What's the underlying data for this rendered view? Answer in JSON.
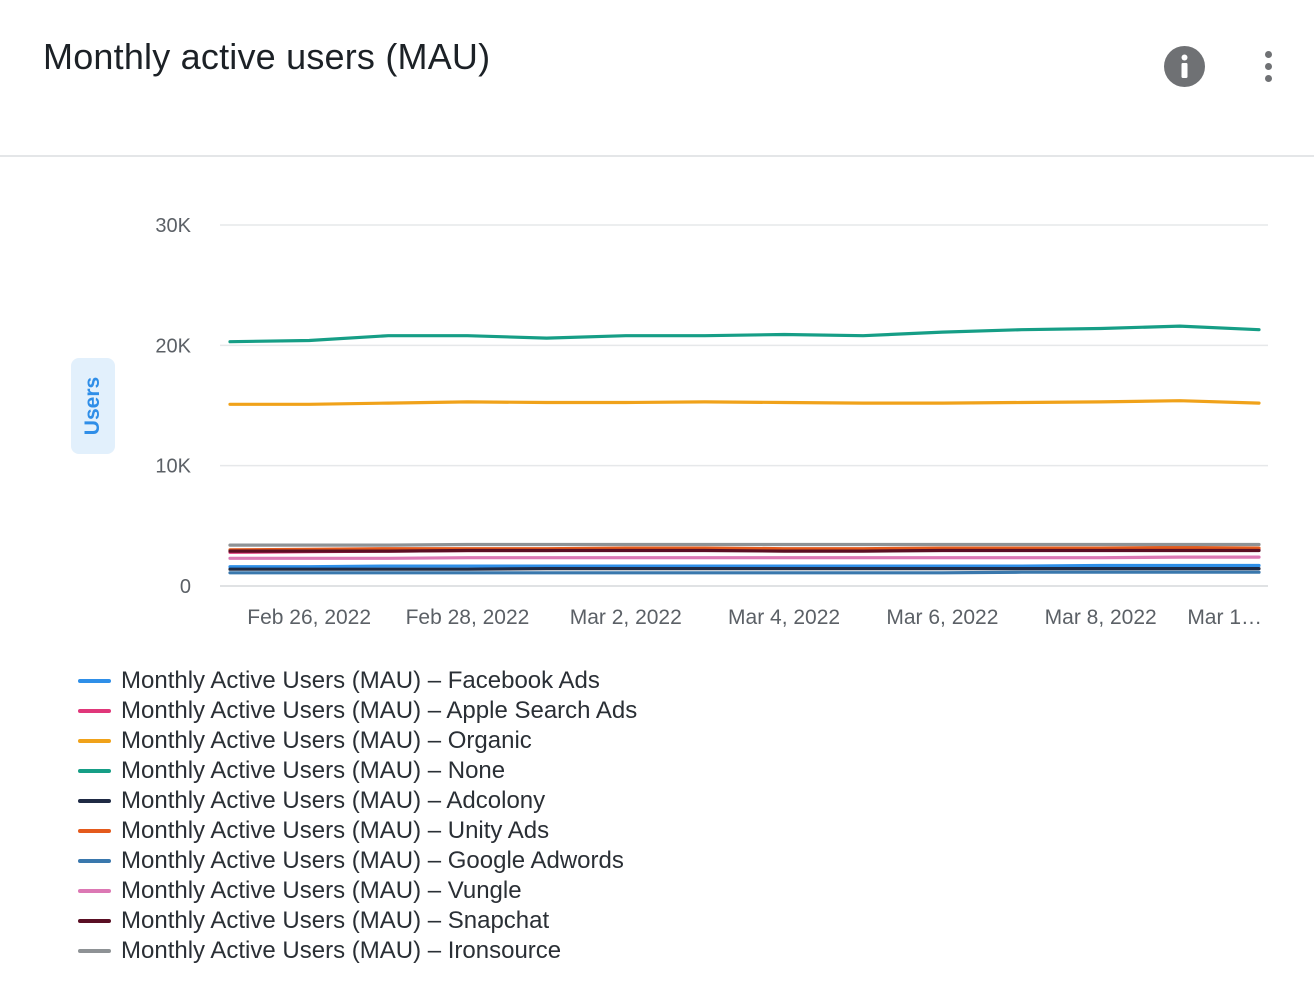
{
  "header": {
    "title": "Monthly active users (MAU)",
    "info_icon": "info-icon",
    "more_icon": "more-vertical-icon"
  },
  "chart_data": {
    "type": "line",
    "title": "Monthly active users (MAU)",
    "xlabel": "",
    "ylabel": "Users",
    "ylim": [
      0,
      30000
    ],
    "yticks": [
      0,
      10000,
      20000,
      30000
    ],
    "ytick_labels": [
      "0",
      "10K",
      "20K",
      "30K"
    ],
    "x": [
      "2022-02-25",
      "2022-02-26",
      "2022-02-27",
      "2022-02-28",
      "2022-03-01",
      "2022-03-02",
      "2022-03-03",
      "2022-03-04",
      "2022-03-05",
      "2022-03-06",
      "2022-03-07",
      "2022-03-08",
      "2022-03-09",
      "2022-03-10"
    ],
    "xtick_labels": [
      "Feb 26, 2022",
      "Feb 28, 2022",
      "Mar 2, 2022",
      "Mar 4, 2022",
      "Mar 6, 2022",
      "Mar 8, 2022",
      "Mar 1…"
    ],
    "xtick_dates": [
      "2022-02-26",
      "2022-02-28",
      "2022-03-02",
      "2022-03-04",
      "2022-03-06",
      "2022-03-08",
      "2022-03-10"
    ],
    "grid": true,
    "legend_position": "bottom-left",
    "series": [
      {
        "name": "Monthly Active Users (MAU) – Facebook Ads",
        "color": "#2f8fe8",
        "values": [
          1600,
          1600,
          1650,
          1650,
          1650,
          1650,
          1650,
          1650,
          1650,
          1650,
          1650,
          1700,
          1700,
          1700
        ]
      },
      {
        "name": "Monthly Active Users (MAU) – Apple Search Ads",
        "color": "#e0377a",
        "values": [
          2800,
          2850,
          2900,
          2950,
          2950,
          3000,
          3000,
          3000,
          3000,
          3000,
          3000,
          3050,
          3050,
          3050
        ]
      },
      {
        "name": "Monthly Active Users (MAU) – Organic",
        "color": "#f0a21a",
        "values": [
          15100,
          15100,
          15200,
          15300,
          15250,
          15250,
          15300,
          15250,
          15200,
          15200,
          15250,
          15300,
          15400,
          15200
        ]
      },
      {
        "name": "Monthly Active Users (MAU) – None",
        "color": "#169e86",
        "values": [
          20300,
          20400,
          20800,
          20800,
          20600,
          20800,
          20800,
          20900,
          20800,
          21100,
          21300,
          21400,
          21600,
          21300
        ]
      },
      {
        "name": "Monthly Active Users (MAU) – Adcolony",
        "color": "#1f2a44",
        "values": [
          1400,
          1400,
          1400,
          1400,
          1450,
          1450,
          1450,
          1450,
          1450,
          1450,
          1450,
          1450,
          1450,
          1450
        ]
      },
      {
        "name": "Monthly Active Users (MAU) – Unity Ads",
        "color": "#e45a1c",
        "values": [
          3000,
          3050,
          3100,
          3100,
          3100,
          3150,
          3150,
          3100,
          3100,
          3150,
          3150,
          3150,
          3200,
          3150
        ]
      },
      {
        "name": "Monthly Active Users (MAU) – Google Adwords",
        "color": "#3a78ad",
        "values": [
          1100,
          1100,
          1100,
          1100,
          1100,
          1100,
          1100,
          1100,
          1100,
          1100,
          1150,
          1150,
          1150,
          1150
        ]
      },
      {
        "name": "Monthly Active Users (MAU) – Vungle",
        "color": "#dc78b4",
        "values": [
          2300,
          2300,
          2300,
          2350,
          2350,
          2350,
          2350,
          2350,
          2350,
          2350,
          2350,
          2350,
          2400,
          2400
        ]
      },
      {
        "name": "Monthly Active Users (MAU) – Snapchat",
        "color": "#5a0f24",
        "values": [
          2900,
          2900,
          2900,
          2950,
          2950,
          2950,
          2950,
          2900,
          2900,
          2950,
          2950,
          2950,
          2950,
          2950
        ]
      },
      {
        "name": "Monthly Active Users (MAU) – Ironsource",
        "color": "#8e9295",
        "values": [
          3400,
          3400,
          3400,
          3450,
          3450,
          3450,
          3450,
          3450,
          3450,
          3450,
          3450,
          3450,
          3450,
          3450
        ]
      }
    ]
  }
}
